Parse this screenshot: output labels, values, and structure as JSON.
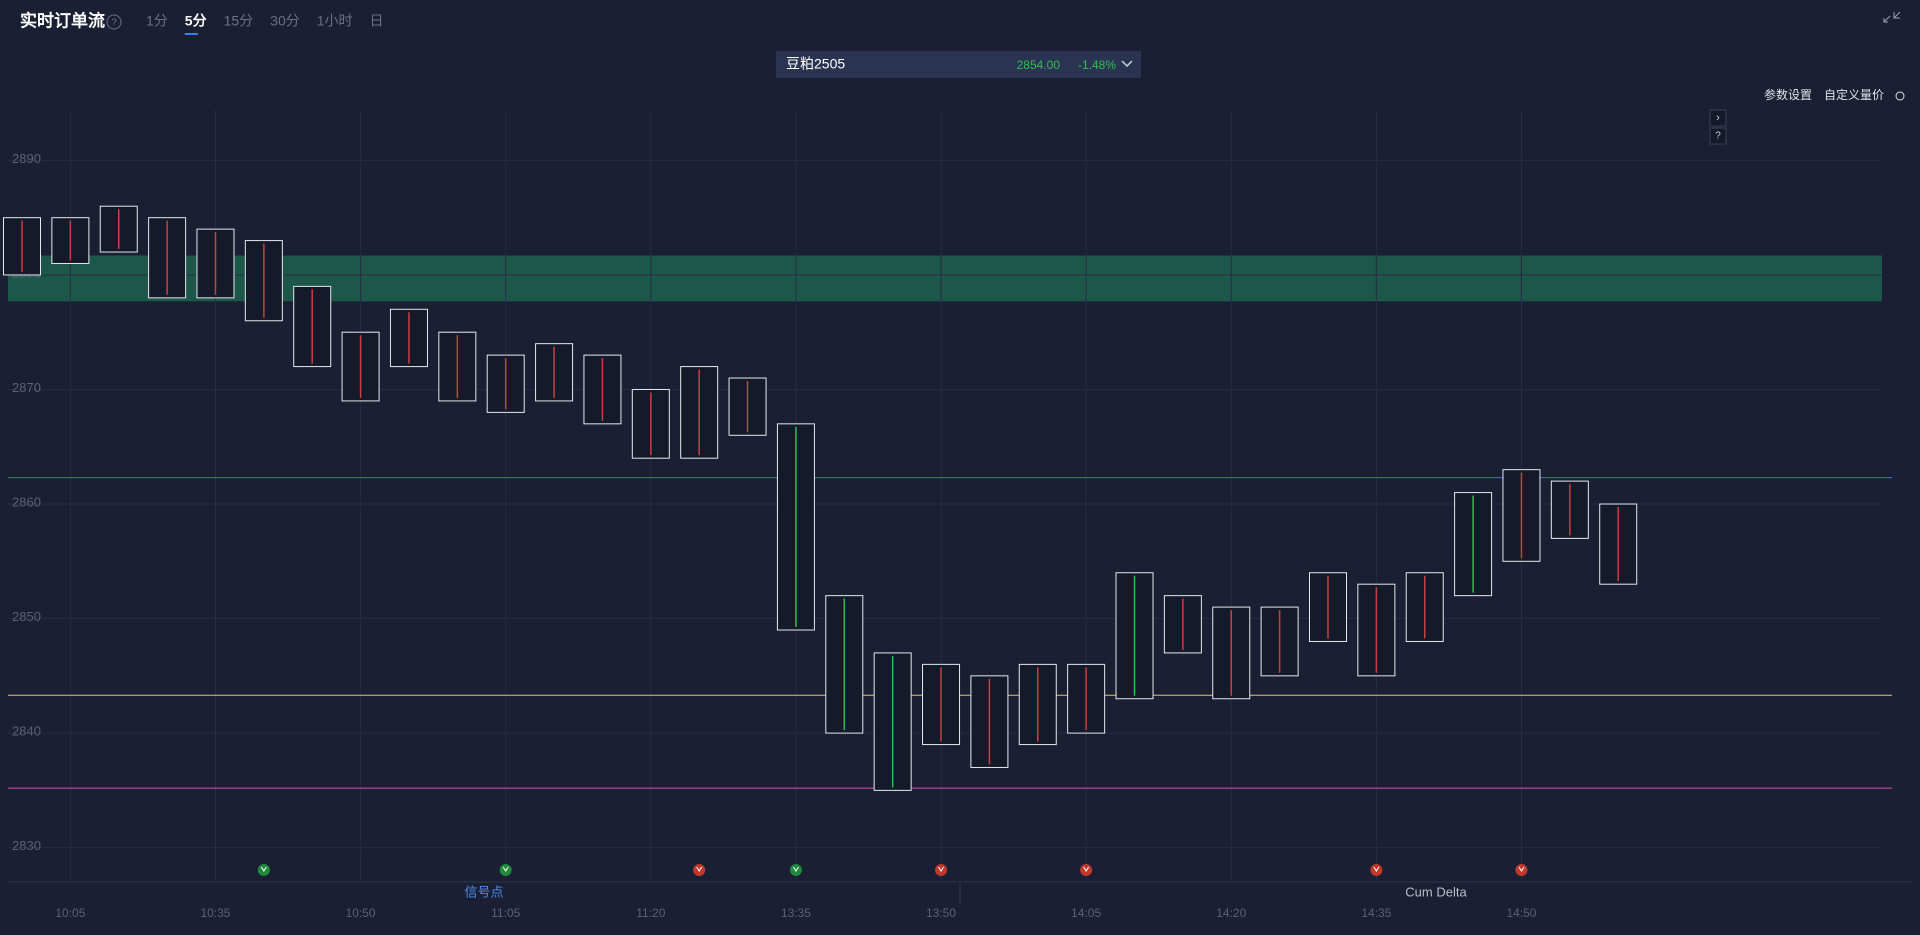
{
  "header": {
    "title": "实时订单流",
    "tabs": [
      "1分",
      "5分",
      "15分",
      "30分",
      "1小时",
      "日"
    ],
    "active_tab": 1
  },
  "symbol": {
    "name": "豆粕2505",
    "price": "2854.00",
    "change": "-1.48%"
  },
  "toolbar": [
    "参数设置",
    "自定义量价"
  ],
  "bottom_tabs": [
    "信号点",
    "Cum Delta"
  ],
  "chart_data": {
    "type": "footprint",
    "categories": [
      null,
      "10:05",
      null,
      null,
      "10:35",
      null,
      null,
      "10:50",
      null,
      null,
      "11:05",
      null,
      null,
      "11:20",
      null,
      null,
      "13:35",
      null,
      null,
      "13:50",
      null,
      null,
      "14:05",
      null,
      null,
      "14:20",
      null,
      null,
      "14:35",
      null,
      null,
      "14:50",
      null,
      null
    ],
    "high": [
      2885,
      2885,
      2886,
      2885,
      2884,
      2883,
      2879,
      2875,
      2877,
      2875,
      2873,
      2874,
      2873,
      2870,
      2872,
      2871,
      2867,
      2852,
      2847,
      2846,
      2845,
      2846,
      2846,
      2854,
      2852,
      2851,
      2851,
      2854,
      2853,
      2854,
      2861,
      2863,
      2862,
      2860
    ],
    "low": [
      2880,
      2881,
      2882,
      2878,
      2878,
      2876,
      2872,
      2869,
      2872,
      2869,
      2868,
      2869,
      2867,
      2864,
      2864,
      2866,
      2849,
      2840,
      2835,
      2839,
      2837,
      2839,
      2840,
      2843,
      2847,
      2843,
      2845,
      2848,
      2845,
      2848,
      2852,
      2855,
      2857,
      2853
    ],
    "ylim": [
      2827,
      2894.4
    ],
    "yticks": [
      2830,
      2840,
      2850,
      2860,
      2870,
      2880,
      2890
    ],
    "grid": true,
    "zone": [
      2877.7,
      2881.7
    ],
    "levels": [
      {
        "price": 2862.3,
        "color": "#3f6fd8"
      },
      {
        "price": 2843.3,
        "color": "#d9c27a"
      },
      {
        "price": 2835.2,
        "color": "#d94fa8"
      }
    ],
    "signals": [
      {
        "index": 5,
        "color": "#1f8a3c"
      },
      {
        "index": 10,
        "color": "#1f8a3c"
      },
      {
        "index": 14,
        "color": "#c0392b"
      },
      {
        "index": 16,
        "color": "#1f8a3c"
      },
      {
        "index": 19,
        "color": "#c0392b"
      },
      {
        "index": 22,
        "color": "#c0392b"
      },
      {
        "index": 28,
        "color": "#c0392b"
      },
      {
        "index": 31,
        "color": "#c0392b"
      }
    ]
  }
}
